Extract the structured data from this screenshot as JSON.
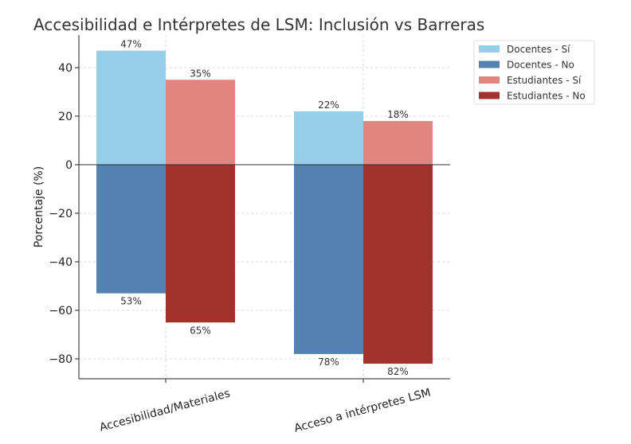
{
  "chart_data": {
    "type": "bar",
    "title": "Accesibilidad e Intérpretes de LSM: Inclusión vs Barreras",
    "xlabel": "",
    "ylabel": "Porcentaje (%)",
    "ylim": [
      -88,
      53
    ],
    "yticks": [
      -80,
      -60,
      -40,
      -20,
      0,
      20,
      40
    ],
    "grid": true,
    "legend_position": "outside-top-right",
    "categories": [
      "Accesibilidad/Materiales",
      "Acceso a intérpretes LSM"
    ],
    "series": [
      {
        "name": "Docentes - Sí",
        "values": [
          47,
          22
        ],
        "color": "#96cde9",
        "labels": [
          "47%",
          "22%"
        ]
      },
      {
        "name": "Docentes - No",
        "values": [
          -53,
          -78
        ],
        "color": "#5281b2",
        "labels": [
          "53%",
          "78%"
        ]
      },
      {
        "name": "Estudiantes - Sí",
        "values": [
          35,
          18
        ],
        "color": "#e08580",
        "labels": [
          "35%",
          "18%"
        ]
      },
      {
        "name": "Estudiantes - No",
        "values": [
          -65,
          -82
        ],
        "color": "#a2302b",
        "labels": [
          "65%",
          "82%"
        ]
      }
    ]
  }
}
